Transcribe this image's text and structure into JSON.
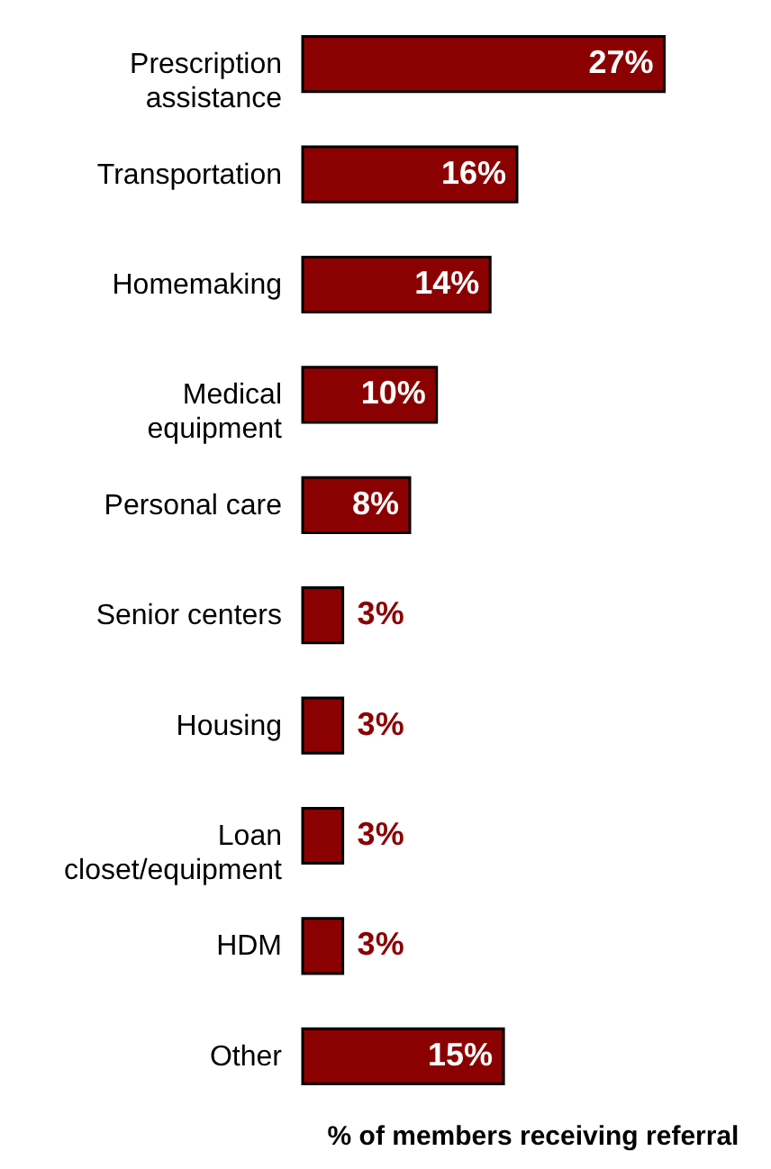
{
  "chart_data": {
    "type": "bar",
    "orientation": "horizontal",
    "xlabel": "% of members receiving referral",
    "categories": [
      "Prescription assistance",
      "Transportation",
      "Homemaking",
      "Medical equipment",
      "Personal care",
      "Senior centers",
      "Housing",
      "Loan closet/equipment",
      "HDM",
      "Other"
    ],
    "values": [
      27,
      16,
      14,
      10,
      8,
      3,
      3,
      3,
      3,
      15
    ],
    "value_labels": [
      "27%",
      "16%",
      "14%",
      "10%",
      "8%",
      "3%",
      "3%",
      "3%",
      "3%",
      "15%"
    ],
    "color": "#8b0000",
    "tick_labels": "y"
  }
}
